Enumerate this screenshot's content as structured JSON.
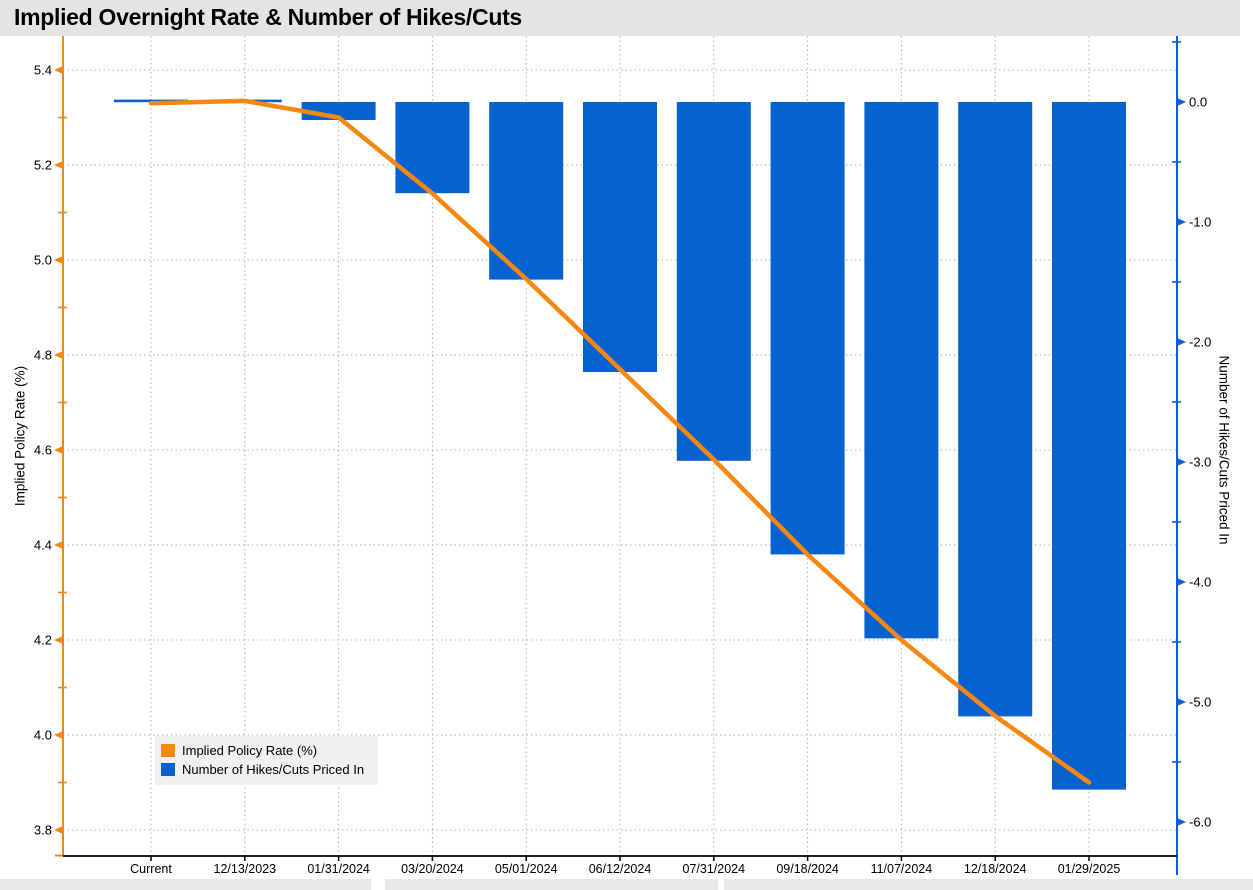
{
  "title": "Implied Overnight Rate & Number of Hikes/Cuts",
  "colors": {
    "line_orange": "#f7870f",
    "bar_blue": "#0662d1",
    "grid_gray": "#b0b0b0",
    "title_bar_bg": "#e4e4e4",
    "legend_bg": "#f0f0f0",
    "bottom_strip_bg": "#e8e8e8",
    "x_axis_black": "#000000"
  },
  "chart_data": {
    "type": "bar+line (dual axis)",
    "title": "Implied Overnight Rate & Number of Hikes/Cuts",
    "categories": [
      "Current",
      "12/13/2023",
      "01/31/2024",
      "03/20/2024",
      "05/01/2024",
      "06/12/2024",
      "07/31/2024",
      "09/18/2024",
      "11/07/2024",
      "12/18/2024",
      "01/29/2025"
    ],
    "series": [
      {
        "name": "Implied Policy Rate (%)",
        "type": "line",
        "axis": "left",
        "color": "#f7870f",
        "values": [
          5.33,
          5.335,
          5.3,
          5.14,
          4.96,
          4.77,
          4.58,
          4.38,
          4.2,
          4.04,
          3.9
        ]
      },
      {
        "name": "Number of Hikes/Cuts Priced In",
        "type": "bar",
        "axis": "right",
        "color": "#0662d1",
        "values": [
          0.0,
          0.01,
          -0.15,
          -0.76,
          -1.48,
          -2.25,
          -2.99,
          -3.77,
          -4.47,
          -5.12,
          -5.73
        ]
      }
    ],
    "left_axis": {
      "label": "Implied Policy Rate (%)",
      "ticks": [
        "5.4",
        "5.2",
        "5.0",
        "4.8",
        "4.6",
        "4.4",
        "4.2",
        "4.0",
        "3.8"
      ],
      "minor_ticks": [
        5.3,
        5.1,
        4.9,
        4.7,
        4.5,
        4.3,
        4.1,
        3.9
      ],
      "range": [
        3.745,
        5.47
      ]
    },
    "right_axis": {
      "label": "Number of Hikes/Cuts Priced In",
      "ticks": [
        "0.0",
        "-1.0",
        "-2.0",
        "-3.0",
        "-4.0",
        "-5.0",
        "-6.0"
      ],
      "minor_ticks": [
        0.5,
        -0.5,
        -1.5,
        -2.5,
        -3.5,
        -4.5,
        -5.5
      ],
      "range": [
        -6.28,
        0.55
      ]
    },
    "grid": "dotted horizontal at left-axis majors, dotted vertical at each category",
    "legend_position": "bottom-left inside plot"
  },
  "legend": {
    "items": [
      "Implied Policy Rate (%)",
      "Number of Hikes/Cuts Priced In"
    ]
  }
}
